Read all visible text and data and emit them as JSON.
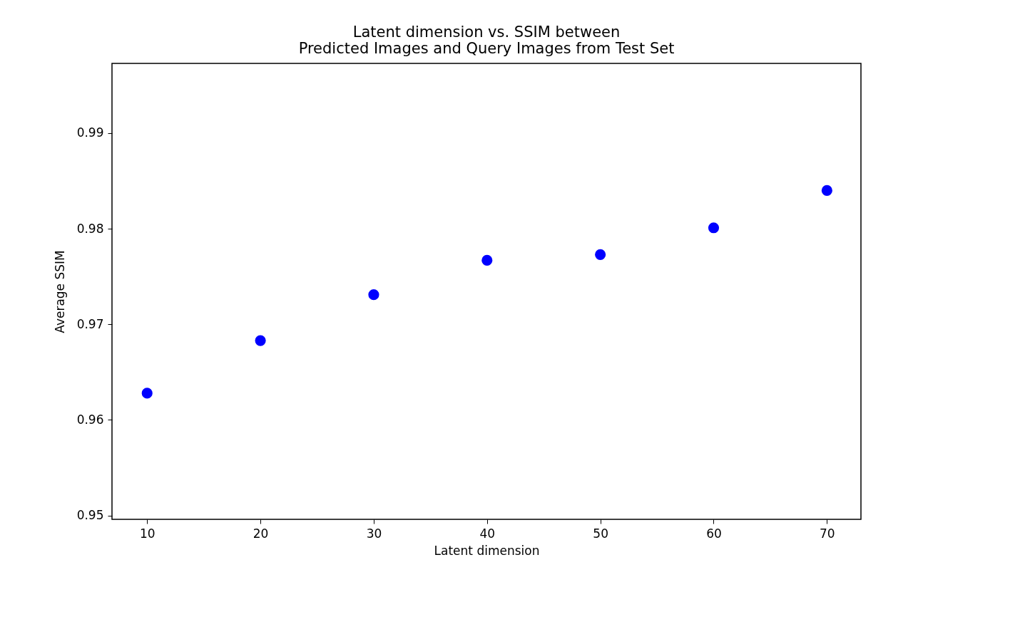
{
  "chart_data": {
    "type": "scatter",
    "title": [
      "Latent dimension vs. SSIM between",
      "Predicted Images and Query Images from Test Set"
    ],
    "xlabel": "Latent dimension",
    "ylabel": "Average SSIM",
    "x": [
      10,
      20,
      30,
      40,
      50,
      60,
      70
    ],
    "series": [
      {
        "color": "#0000ff",
        "values": [
          0.9628,
          0.9683,
          0.9731,
          0.9767,
          0.9773,
          0.9801,
          0.984
        ]
      }
    ],
    "xlim": [
      6.9,
      73.0
    ],
    "ylim": [
      0.9496,
      0.9973
    ],
    "xticks": [
      10,
      20,
      30,
      40,
      50,
      60,
      70
    ],
    "yticks": [
      0.95,
      0.96,
      0.97,
      0.98,
      0.99
    ],
    "marker": "circle",
    "grid": false
  }
}
